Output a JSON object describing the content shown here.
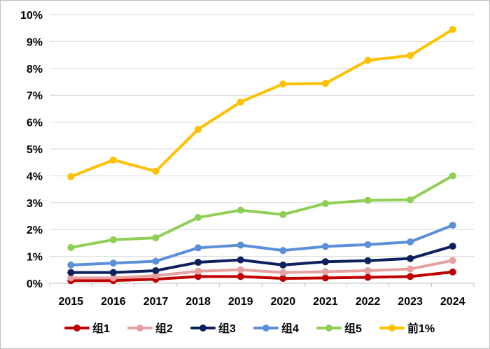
{
  "chart_data": {
    "type": "line",
    "title": "",
    "xlabel": "",
    "ylabel": "",
    "categories": [
      "2015",
      "2016",
      "2017",
      "2018",
      "2019",
      "2020",
      "2021",
      "2022",
      "2023",
      "2024"
    ],
    "y_ticks": [
      "0%",
      "1%",
      "2%",
      "3%",
      "4%",
      "5%",
      "6%",
      "7%",
      "8%",
      "9%",
      "10%"
    ],
    "ylim": [
      0,
      10
    ],
    "grid": "horizontal",
    "legend_position": "bottom",
    "series": [
      {
        "name": "组1",
        "color": "#C00000",
        "values": [
          0.1,
          0.1,
          0.15,
          0.25,
          0.25,
          0.18,
          0.2,
          0.22,
          0.25,
          0.42
        ]
      },
      {
        "name": "组2",
        "color": "#E6A0A0",
        "values": [
          0.2,
          0.2,
          0.28,
          0.45,
          0.5,
          0.4,
          0.43,
          0.47,
          0.53,
          0.85
        ]
      },
      {
        "name": "组3",
        "color": "#0D1F5C",
        "values": [
          0.4,
          0.4,
          0.47,
          0.78,
          0.87,
          0.68,
          0.8,
          0.84,
          0.92,
          1.38
        ]
      },
      {
        "name": "组4",
        "color": "#5B8FD9",
        "values": [
          0.68,
          0.75,
          0.82,
          1.32,
          1.42,
          1.22,
          1.37,
          1.44,
          1.54,
          2.16
        ]
      },
      {
        "name": "组5",
        "color": "#8FCF55",
        "values": [
          1.33,
          1.62,
          1.69,
          2.45,
          2.72,
          2.56,
          2.97,
          3.09,
          3.11,
          4.0
        ]
      },
      {
        "name": "前1%",
        "color": "#FFC000",
        "values": [
          3.97,
          4.59,
          4.17,
          5.73,
          6.75,
          7.42,
          7.44,
          8.3,
          8.48,
          9.45
        ]
      }
    ]
  }
}
